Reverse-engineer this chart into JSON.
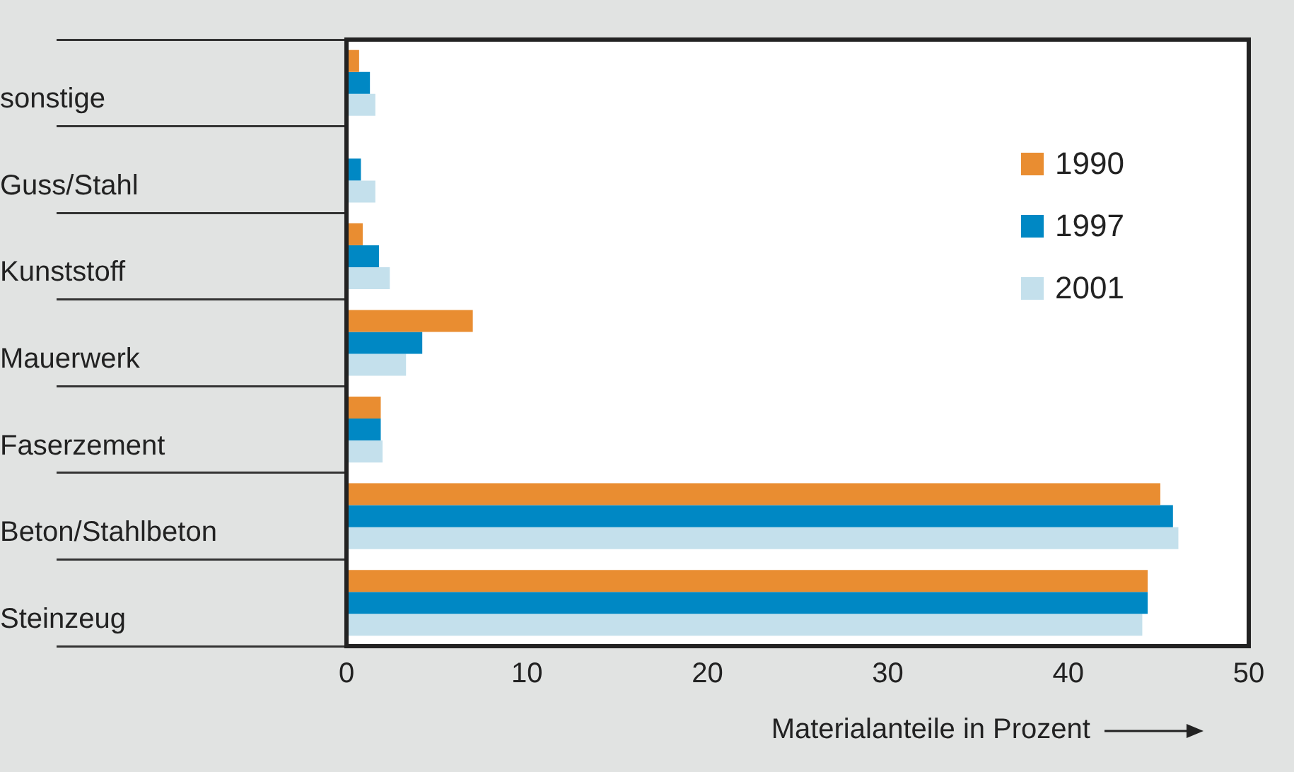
{
  "chart_data": {
    "type": "bar",
    "orientation": "horizontal",
    "xlabel": "Materialanteile in Prozent",
    "categories": [
      "sonstige",
      "Guss/Stahl",
      "Kunststoff",
      "Mauerwerk",
      "Faserzement",
      "Beton/Stahlbeton",
      "Steinzeug"
    ],
    "series": [
      {
        "name": "1990",
        "color": "#e98d31",
        "values": [
          0.7,
          null,
          0.9,
          7.0,
          1.9,
          45.1,
          44.4
        ]
      },
      {
        "name": "1997",
        "color": "#0088c4",
        "values": [
          1.3,
          0.8,
          1.8,
          4.2,
          1.9,
          45.8,
          44.4
        ]
      },
      {
        "name": "2001",
        "color": "#c4e0ec",
        "values": [
          1.6,
          1.6,
          2.4,
          3.3,
          2.0,
          46.1,
          44.1
        ]
      }
    ],
    "xlim": [
      0,
      50
    ],
    "xticks": [
      0,
      10,
      20,
      30,
      40,
      50
    ],
    "grid": false,
    "legend": "top right"
  }
}
